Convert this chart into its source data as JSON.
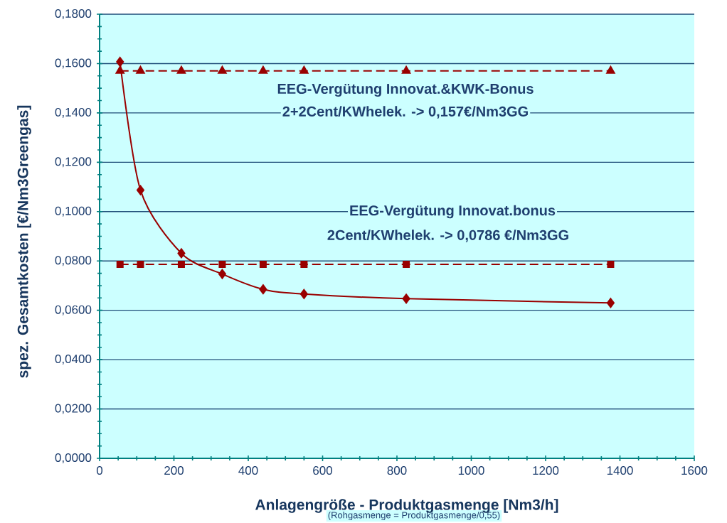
{
  "chart_data": {
    "type": "line",
    "xlabel": "Anlagengröße - Produktgasmenge [Nm3/h]",
    "ylabel": "spez. Gesamtkosten [€/Nm3Greengas]",
    "x": [
      55,
      110,
      220,
      330,
      440,
      550,
      825,
      1375
    ],
    "series": [
      {
        "color": "#990000",
        "values": [
          0.1607,
          0.1087,
          0.0831,
          0.0747,
          0.0685,
          0.0666,
          0.0647,
          0.063
        ],
        "marker": "diamond",
        "line_style": "solid"
      },
      {
        "color": "#990000",
        "values": [
          0.157,
          0.157,
          0.157,
          0.157,
          0.157,
          0.157,
          0.157,
          0.157
        ],
        "marker": "triangle",
        "line_style": "dashed"
      },
      {
        "color": "#990000",
        "values": [
          0.0786,
          0.0786,
          0.0786,
          0.0786,
          0.0786,
          0.0786,
          0.0786,
          0.0786
        ],
        "marker": "square",
        "line_style": "dashed"
      }
    ],
    "xlim": [
      0,
      1600
    ],
    "xticks": [
      0,
      200,
      400,
      600,
      800,
      1000,
      1200,
      1400,
      1600
    ],
    "ylim": [
      0,
      0.18
    ],
    "yticks": [
      {
        "value": 0,
        "label": "0,0000"
      },
      {
        "value": 0.02,
        "label": "0,0200"
      },
      {
        "value": 0.04,
        "label": "0,0400"
      },
      {
        "value": 0.06,
        "label": "0,0600"
      },
      {
        "value": 0.08,
        "label": "0,0800"
      },
      {
        "value": 0.1,
        "label": "0,1000"
      },
      {
        "value": 0.12,
        "label": "0,1200"
      },
      {
        "value": 0.14,
        "label": "0,1400"
      },
      {
        "value": 0.16,
        "label": "0,1600"
      },
      {
        "value": 0.18,
        "label": "0,1800"
      }
    ],
    "grid": "y",
    "annotations": [
      "EEG-Vergütung Innovat.&KWK-Bonus",
      "2+2Cent/KWhelek. -> 0,157€/Nm3GG",
      "EEG-Vergütung  Innovat.bonus",
      "2Cent/KWhelek. -> 0,0786 €/Nm3GG",
      "(Rohgasmenge = Produktgasmenge/0,55)"
    ]
  }
}
